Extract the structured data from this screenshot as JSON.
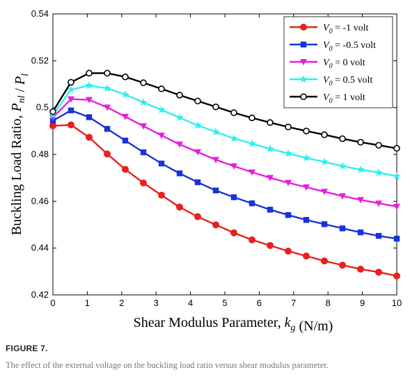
{
  "figure": {
    "label": "FIGURE 7.",
    "caption": "The effect of the external voltage on the buckling load ratio versus shear modulus parameter."
  },
  "chart_data": {
    "type": "line",
    "xlabel": "Shear Modulus Parameter, k_g (N/m)",
    "ylabel": "Buckling Load Ratio, P_nl / P_l",
    "xlim": [
      0,
      10
    ],
    "ylim": [
      0.42,
      0.54
    ],
    "xticks": [
      0,
      1,
      2,
      3,
      4,
      5,
      6,
      7,
      8,
      9,
      10
    ],
    "yticks": [
      0.42,
      0.44,
      0.46,
      0.48,
      0.5,
      0.52,
      0.54
    ],
    "ytick_labels": [
      "0.42",
      "0.44",
      "0.46",
      "0.48",
      "0.5",
      "0.52",
      "0.54"
    ],
    "grid": false,
    "legend_position": "top-right",
    "x": [
      0,
      0.526,
      1.053,
      1.579,
      2.105,
      2.632,
      3.158,
      3.684,
      4.211,
      4.737,
      5.263,
      5.789,
      6.316,
      6.842,
      7.368,
      7.895,
      8.421,
      8.947,
      9.474,
      10
    ],
    "series": [
      {
        "name": "V_0 = -1 volt",
        "color": "#e8211d",
        "marker": "circle",
        "values": [
          0.4922,
          0.4926,
          0.4873,
          0.4802,
          0.4736,
          0.4678,
          0.4626,
          0.4575,
          0.4534,
          0.4499,
          0.4465,
          0.4435,
          0.4411,
          0.4387,
          0.4366,
          0.4345,
          0.4327,
          0.431,
          0.4297,
          0.4281
        ]
      },
      {
        "name": "V_0 = -0.5 volt",
        "color": "#1833d9",
        "marker": "square",
        "values": [
          0.4944,
          0.4988,
          0.4959,
          0.4909,
          0.4859,
          0.4809,
          0.4761,
          0.4719,
          0.4681,
          0.4646,
          0.4617,
          0.4591,
          0.4564,
          0.4541,
          0.452,
          0.4502,
          0.4484,
          0.4467,
          0.4452,
          0.444
        ]
      },
      {
        "name": "V_0 = 0 volt",
        "color": "#e51ee0",
        "marker": "triangle-down",
        "values": [
          0.4957,
          0.5036,
          0.5033,
          0.5001,
          0.4961,
          0.4921,
          0.4881,
          0.4843,
          0.481,
          0.4777,
          0.475,
          0.4724,
          0.47,
          0.4679,
          0.466,
          0.4641,
          0.4622,
          0.4606,
          0.4591,
          0.4577
        ]
      },
      {
        "name": "V_0 = 0.5 volt",
        "color": "#2ef0ee",
        "marker": "star",
        "values": [
          0.4968,
          0.5076,
          0.5094,
          0.5082,
          0.5056,
          0.5022,
          0.499,
          0.4957,
          0.4924,
          0.4896,
          0.4868,
          0.4846,
          0.4824,
          0.4804,
          0.4785,
          0.4768,
          0.475,
          0.4735,
          0.4722,
          0.4707
        ]
      },
      {
        "name": "V_0 = 1 volt",
        "color": "#000000",
        "marker": "circle-open",
        "values": [
          0.4983,
          0.5108,
          0.5147,
          0.5147,
          0.5131,
          0.5106,
          0.508,
          0.5053,
          0.5028,
          0.5003,
          0.4978,
          0.4956,
          0.4936,
          0.4917,
          0.49,
          0.4884,
          0.4867,
          0.4852,
          0.4839,
          0.4826
        ]
      }
    ]
  }
}
